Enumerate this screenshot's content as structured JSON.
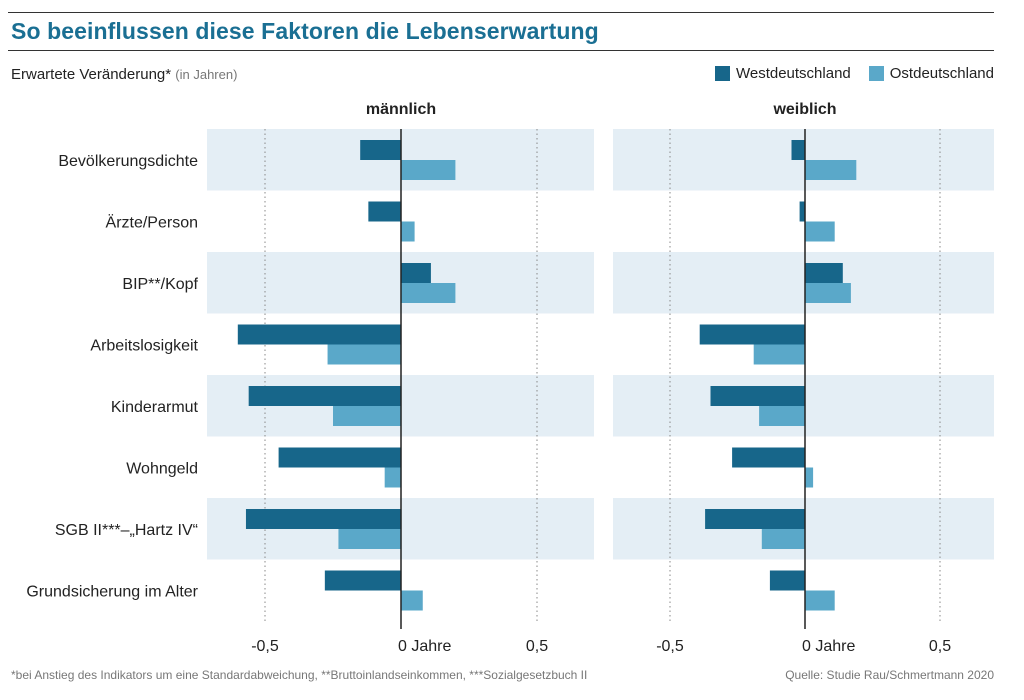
{
  "title": "So beeinflussen diese Faktoren die Lebenserwartung",
  "subtitle": "Erwartete Veränderung*",
  "subtitle_unit": "(in Jahren)",
  "legend": [
    {
      "label": "Westdeutschland",
      "color": "#17668a"
    },
    {
      "label": "Ostdeutschland",
      "color": "#5aa8c9"
    }
  ],
  "colors": {
    "west": "#17668a",
    "ost": "#5aa8c9",
    "band": "#e4eef5"
  },
  "footnote": "*bei Anstieg des Indikators um eine Standardabweichung, **Bruttoinlandseinkommen, ***Sozialgesetzbuch II",
  "source": "Quelle: Studie Rau/Schmertmann 2020",
  "chart_data": [
    {
      "type": "bar",
      "title": "männlich",
      "categories": [
        "Bevölkerungsdichte",
        "Ärzte/Person",
        "BIP**/Kopf",
        "Arbeitslosigkeit",
        "Kinderarmut",
        "Wohngeld",
        "SGB II***–„Hartz IV“",
        "Grundsicherung im Alter"
      ],
      "series": [
        {
          "name": "Westdeutschland",
          "values": [
            -0.15,
            -0.12,
            0.11,
            -0.6,
            -0.56,
            -0.45,
            -0.57,
            -0.28
          ]
        },
        {
          "name": "Ostdeutschland",
          "values": [
            0.2,
            0.05,
            0.2,
            -0.27,
            -0.25,
            -0.06,
            -0.23,
            0.08
          ]
        }
      ],
      "xlim": [
        -0.7,
        0.7
      ],
      "ticks": [
        -0.5,
        0,
        0.5
      ],
      "tick_labels": [
        "-0,5",
        "0 Jahre",
        "0,5"
      ],
      "grid": true
    },
    {
      "type": "bar",
      "title": "weiblich",
      "categories": [
        "Bevölkerungsdichte",
        "Ärzte/Person",
        "BIP**/Kopf",
        "Arbeitslosigkeit",
        "Kinderarmut",
        "Wohngeld",
        "SGB II***–„Hartz IV“",
        "Grundsicherung im Alter"
      ],
      "series": [
        {
          "name": "Westdeutschland",
          "values": [
            -0.05,
            -0.02,
            0.14,
            -0.39,
            -0.35,
            -0.27,
            -0.37,
            -0.13
          ]
        },
        {
          "name": "Ostdeutschland",
          "values": [
            0.19,
            0.11,
            0.17,
            -0.19,
            -0.17,
            0.03,
            -0.16,
            0.11
          ]
        }
      ],
      "xlim": [
        -0.7,
        0.7
      ],
      "ticks": [
        -0.5,
        0,
        0.5
      ],
      "tick_labels": [
        "-0,5",
        "0 Jahre",
        "0,5"
      ],
      "grid": true
    }
  ]
}
